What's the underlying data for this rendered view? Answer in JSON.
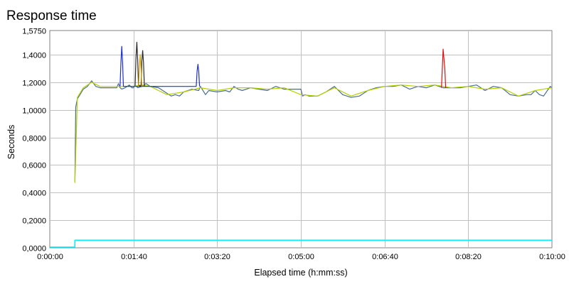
{
  "chart_data": {
    "type": "line",
    "title": "Response time",
    "xlabel": "Elapsed time (h:mm:ss)",
    "ylabel": "Seconds",
    "xlim": [
      0,
      600
    ],
    "ylim": [
      0,
      1.575
    ],
    "grid": true,
    "x_ticks": [
      {
        "value": 0,
        "label": "0:00:00"
      },
      {
        "value": 100,
        "label": "0:01:40"
      },
      {
        "value": 200,
        "label": "0:03:20"
      },
      {
        "value": 300,
        "label": "0:05:00"
      },
      {
        "value": 400,
        "label": "0:06:40"
      },
      {
        "value": 500,
        "label": "0:08:20"
      },
      {
        "value": 600,
        "label": "0:10:00"
      }
    ],
    "y_ticks": [
      {
        "value": 0,
        "label": "0,0000"
      },
      {
        "value": 0.2,
        "label": "0,2000"
      },
      {
        "value": 0.4,
        "label": "0,4000"
      },
      {
        "value": 0.6,
        "label": "0,6000"
      },
      {
        "value": 0.8,
        "label": "0,8000"
      },
      {
        "value": 1.0,
        "label": "1,0000"
      },
      {
        "value": 1.2,
        "label": "1,2000"
      },
      {
        "value": 1.4,
        "label": "1,4000"
      },
      {
        "value": 1.575,
        "label": "1,5750"
      }
    ],
    "series": [
      {
        "color": "#4b6e8f",
        "x": [
          30,
          31,
          33,
          36,
          40,
          45,
          50,
          55,
          60,
          70,
          80,
          82,
          84,
          86,
          90,
          95,
          98,
          100,
          102,
          105,
          110,
          115,
          120,
          130,
          140,
          145,
          150,
          155,
          160,
          170,
          178,
          180,
          182,
          186,
          190,
          200,
          210,
          215,
          220,
          225,
          230,
          240,
          250,
          260,
          270,
          280,
          290,
          300,
          302,
          305,
          310,
          320,
          330,
          340,
          350,
          360,
          370,
          380,
          390,
          400,
          410,
          420,
          430,
          440,
          450,
          460,
          470,
          480,
          490,
          500,
          510,
          520,
          530,
          540,
          550,
          560,
          570,
          575,
          580,
          585,
          590,
          598,
          600
        ],
        "y": [
          0.48,
          1.02,
          1.08,
          1.11,
          1.15,
          1.17,
          1.21,
          1.17,
          1.16,
          1.16,
          1.16,
          1.19,
          1.16,
          1.15,
          1.16,
          1.18,
          1.16,
          1.16,
          1.18,
          1.16,
          1.17,
          1.19,
          1.17,
          1.16,
          1.12,
          1.1,
          1.11,
          1.1,
          1.13,
          1.15,
          1.14,
          1.17,
          1.15,
          1.11,
          1.14,
          1.13,
          1.14,
          1.13,
          1.17,
          1.15,
          1.14,
          1.16,
          1.15,
          1.14,
          1.17,
          1.15,
          1.15,
          1.15,
          1.1,
          1.11,
          1.1,
          1.1,
          1.13,
          1.17,
          1.11,
          1.09,
          1.1,
          1.14,
          1.16,
          1.17,
          1.17,
          1.18,
          1.15,
          1.17,
          1.16,
          1.18,
          1.16,
          1.16,
          1.16,
          1.17,
          1.18,
          1.14,
          1.17,
          1.16,
          1.11,
          1.1,
          1.11,
          1.11,
          1.14,
          1.11,
          1.1,
          1.17,
          1.16
        ]
      },
      {
        "color": "#b8d000",
        "x": [
          30,
          33,
          40,
          50,
          60,
          80,
          100,
          110,
          120,
          140,
          160,
          180,
          200,
          220,
          240,
          260,
          280,
          300,
          320,
          340,
          360,
          380,
          400,
          420,
          440,
          460,
          480,
          500,
          520,
          540,
          560,
          580,
          600
        ],
        "y": [
          0.47,
          1.09,
          1.16,
          1.2,
          1.17,
          1.17,
          1.17,
          1.18,
          1.17,
          1.11,
          1.13,
          1.16,
          1.14,
          1.16,
          1.16,
          1.15,
          1.16,
          1.11,
          1.1,
          1.16,
          1.1,
          1.14,
          1.17,
          1.18,
          1.17,
          1.18,
          1.16,
          1.17,
          1.15,
          1.16,
          1.1,
          1.14,
          1.16
        ]
      },
      {
        "color": "#2030d0",
        "x": [
          84,
          85,
          86,
          87,
          88,
          175,
          176,
          177,
          178,
          179
        ],
        "y": [
          1.17,
          1.34,
          1.46,
          1.34,
          1.17,
          1.17,
          1.28,
          1.33,
          1.28,
          1.17
        ]
      },
      {
        "color": "#2a2a2a",
        "x": [
          102,
          103,
          104,
          105,
          106,
          109,
          110,
          111,
          112,
          113
        ],
        "y": [
          1.18,
          1.38,
          1.49,
          1.36,
          1.18,
          1.17,
          1.35,
          1.43,
          1.34,
          1.17
        ]
      },
      {
        "color": "#d4a000",
        "x": [
          106,
          107,
          108,
          109,
          110
        ],
        "y": [
          1.17,
          1.3,
          1.4,
          1.3,
          1.17
        ]
      },
      {
        "color": "#e01010",
        "x": [
          468,
          469,
          470,
          471,
          472,
          473
        ],
        "y": [
          1.16,
          1.3,
          1.44,
          1.37,
          1.3,
          1.16
        ]
      },
      {
        "color": "#00f0ff",
        "x": [
          0,
          29.9,
          30,
          600
        ],
        "y": [
          0.005,
          0.005,
          0.055,
          0.055
        ]
      }
    ]
  }
}
